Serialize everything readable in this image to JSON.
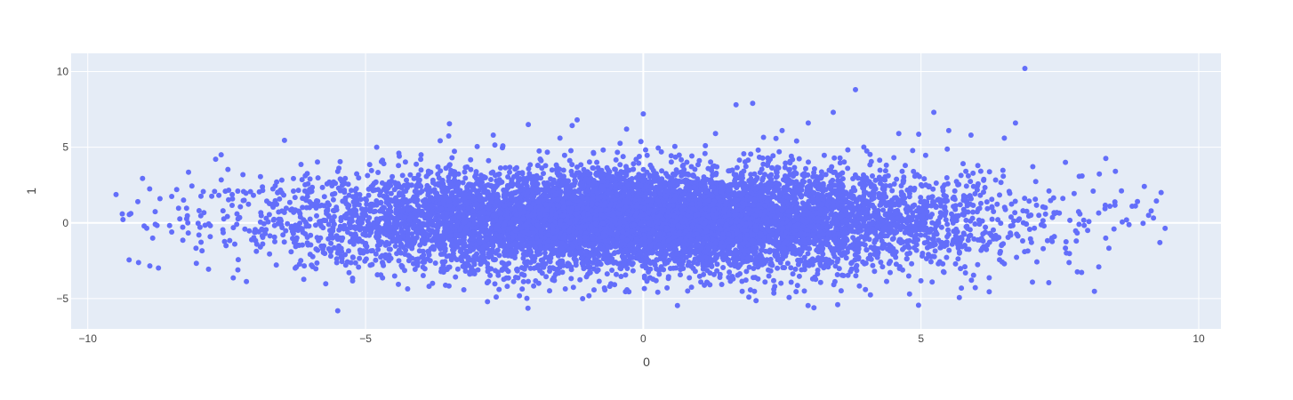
{
  "chart_data": {
    "type": "scatter",
    "title": "",
    "xlabel": "0",
    "ylabel": "1",
    "xlim": [
      -10.3,
      10.4
    ],
    "ylim": [
      -7.0,
      11.2
    ],
    "x_ticks": [
      -10,
      -5,
      0,
      5,
      10
    ],
    "y_ticks": [
      -5,
      0,
      5,
      10
    ],
    "x_tick_labels": [
      "−10",
      "−5",
      "0",
      "5",
      "10"
    ],
    "y_tick_labels": [
      "−5",
      "0",
      "5",
      "10"
    ],
    "grid": true,
    "legend": "none",
    "series": [
      {
        "color": "#636efa",
        "points": [
          [
            6.87,
            10.2
          ],
          [
            3.82,
            8.8
          ],
          [
            1.97,
            7.9
          ],
          [
            1.67,
            7.8
          ],
          [
            0.0,
            7.2
          ],
          [
            -1.19,
            6.8
          ],
          [
            -2.07,
            6.5
          ],
          [
            2.97,
            6.6
          ],
          [
            3.42,
            7.3
          ],
          [
            5.23,
            7.3
          ],
          [
            6.7,
            6.6
          ],
          [
            -4.8,
            5.0
          ],
          [
            -4.4,
            4.6
          ],
          [
            -4.0,
            4.5
          ],
          [
            -7.6,
            4.5
          ],
          [
            -8.4,
            2.2
          ],
          [
            -8.7,
            1.6
          ],
          [
            -9.1,
            1.4
          ],
          [
            -8.2,
            0.0
          ],
          [
            -8.0,
            -0.8
          ],
          [
            -7.3,
            2.1
          ],
          [
            -6.6,
            2.7
          ],
          [
            -6.0,
            2.9
          ],
          [
            -5.5,
            3.4
          ],
          [
            -2.7,
            5.8
          ],
          [
            -1.5,
            5.6
          ],
          [
            -0.3,
            6.2
          ],
          [
            1.3,
            5.9
          ],
          [
            2.5,
            6.1
          ],
          [
            4.6,
            5.9
          ],
          [
            5.5,
            6.1
          ],
          [
            5.9,
            5.8
          ],
          [
            6.5,
            5.6
          ],
          [
            7.6,
            4.0
          ],
          [
            7.9,
            3.1
          ],
          [
            8.1,
            2.1
          ],
          [
            8.4,
            1.1
          ],
          [
            8.7,
            0.2
          ],
          [
            8.0,
            -0.5
          ],
          [
            7.2,
            -1.7
          ],
          [
            6.5,
            -2.7
          ],
          [
            5.8,
            -3.3
          ],
          [
            5.2,
            -3.9
          ],
          [
            4.0,
            -4.4
          ],
          [
            3.5,
            -5.4
          ],
          [
            2.9,
            -4.5
          ],
          [
            1.9,
            -4.9
          ],
          [
            0.8,
            -4.5
          ],
          [
            -0.7,
            -4.3
          ],
          [
            -1.6,
            -3.8
          ],
          [
            -2.8,
            -3.2
          ],
          [
            -3.6,
            -2.8
          ],
          [
            -4.4,
            -2.5
          ],
          [
            -5.1,
            -1.8
          ],
          [
            -5.5,
            -2.0
          ],
          [
            -6.3,
            -0.7
          ],
          [
            -7.0,
            -0.6
          ],
          [
            -5.5,
            -5.8
          ],
          [
            9.3,
            -1.3
          ],
          [
            8.2,
            -2.9
          ],
          [
            8.8,
            1.1
          ],
          [
            7.4,
            -0.9
          ]
        ]
      }
    ],
    "distribution": {
      "count": 9000,
      "x_sigma": 3.0,
      "y_sigma": 1.65
    }
  }
}
